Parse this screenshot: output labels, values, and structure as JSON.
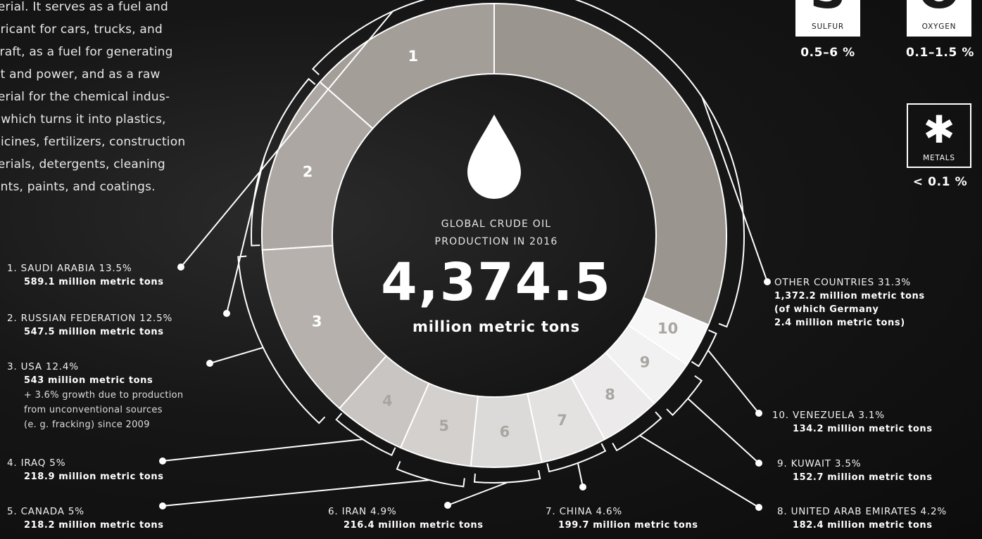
{
  "intro_lines": [
    "terial. It serves as a fuel and",
    "oricant for cars, trucks, and",
    "craft, as a fuel for generating",
    "at and power, and as a raw",
    "terial for the chemical indus-",
    ", which turns it into plastics,",
    "dicines, fertilizers, construction",
    "terials, detergents, cleaning",
    "ents, paints, and coatings."
  ],
  "center": {
    "title_line1": "GLOBAL CRUDE OIL",
    "title_line2": "PRODUCTION IN 2016",
    "total": "4,374.5",
    "unit": "million metric tons"
  },
  "elements": [
    {
      "name": "SULFUR",
      "symbol": "S",
      "range": "0.5–6 %"
    },
    {
      "name": "OXYGEN",
      "symbol": "O",
      "range": "0.1–1.5 %"
    },
    {
      "name": "METALS",
      "symbol": "✱",
      "range": "< 0.1 %"
    }
  ],
  "colors": {
    "ring_fills": [
      "#a49e99",
      "#aca7a2",
      "#b6b1ad",
      "#c9c5c2",
      "#d3d0cd",
      "#dcdad8",
      "#e4e2e1",
      "#eceaea",
      "#f2f1f1",
      "#f7f7f7",
      "#9b9590"
    ],
    "segment_number_color": "#ffffff",
    "segment_number_light_color": "#a9a5a1",
    "leader_lines": "#ffffff"
  },
  "chart_data": {
    "type": "pie",
    "style": "donut",
    "title": "GLOBAL CRUDE OIL PRODUCTION IN 2016",
    "total": 4374.5,
    "unit": "million metric tons",
    "slices": [
      {
        "rank": "1",
        "label": "1. SAUDI ARABIA 13.5%",
        "share": 13.5,
        "value": 589.1,
        "value_text": "589.1 million metric tons"
      },
      {
        "rank": "2",
        "label": "2. RUSSIAN FEDERATION 12.5%",
        "share": 12.5,
        "value": 547.5,
        "value_text": "547.5 million metric tons"
      },
      {
        "rank": "3",
        "label": "3. USA 12.4%",
        "share": 12.4,
        "value": 543,
        "value_text": "543 million metric tons",
        "note_lines": [
          "+ 3.6% growth due to production",
          "from unconventional sources",
          "(e. g. fracking) since 2009"
        ]
      },
      {
        "rank": "4",
        "label": "4. IRAQ 5%",
        "share": 5.0,
        "value": 218.9,
        "value_text": "218.9 million metric tons"
      },
      {
        "rank": "5",
        "label": "5. CANADA 5%",
        "share": 5.0,
        "value": 218.2,
        "value_text": "218.2 million metric tons"
      },
      {
        "rank": "6",
        "label": "6. IRAN 4.9%",
        "share": 4.9,
        "value": 216.4,
        "value_text": "216.4 million metric tons"
      },
      {
        "rank": "7",
        "label": "7. CHINA 4.6%",
        "share": 4.6,
        "value": 199.7,
        "value_text": "199.7 million metric tons"
      },
      {
        "rank": "8",
        "label": "8. UNITED ARAB EMIRATES 4.2%",
        "share": 4.2,
        "value": 182.4,
        "value_text": "182.4 million metric tons"
      },
      {
        "rank": "9",
        "label": "9. KUWAIT 3.5%",
        "share": 3.5,
        "value": 152.7,
        "value_text": "152.7 million metric tons"
      },
      {
        "rank": "10",
        "label": "10. VENEZUELA 3.1%",
        "share": 3.1,
        "value": 134.2,
        "value_text": "134.2 million metric tons"
      },
      {
        "rank": "",
        "label": "OTHER COUNTRIES 31.3%",
        "share": 31.3,
        "value": 1372.2,
        "value_lines": [
          "1,372.2 million metric tons",
          "(of which Germany",
          "2.4 million metric tons)"
        ]
      }
    ]
  }
}
